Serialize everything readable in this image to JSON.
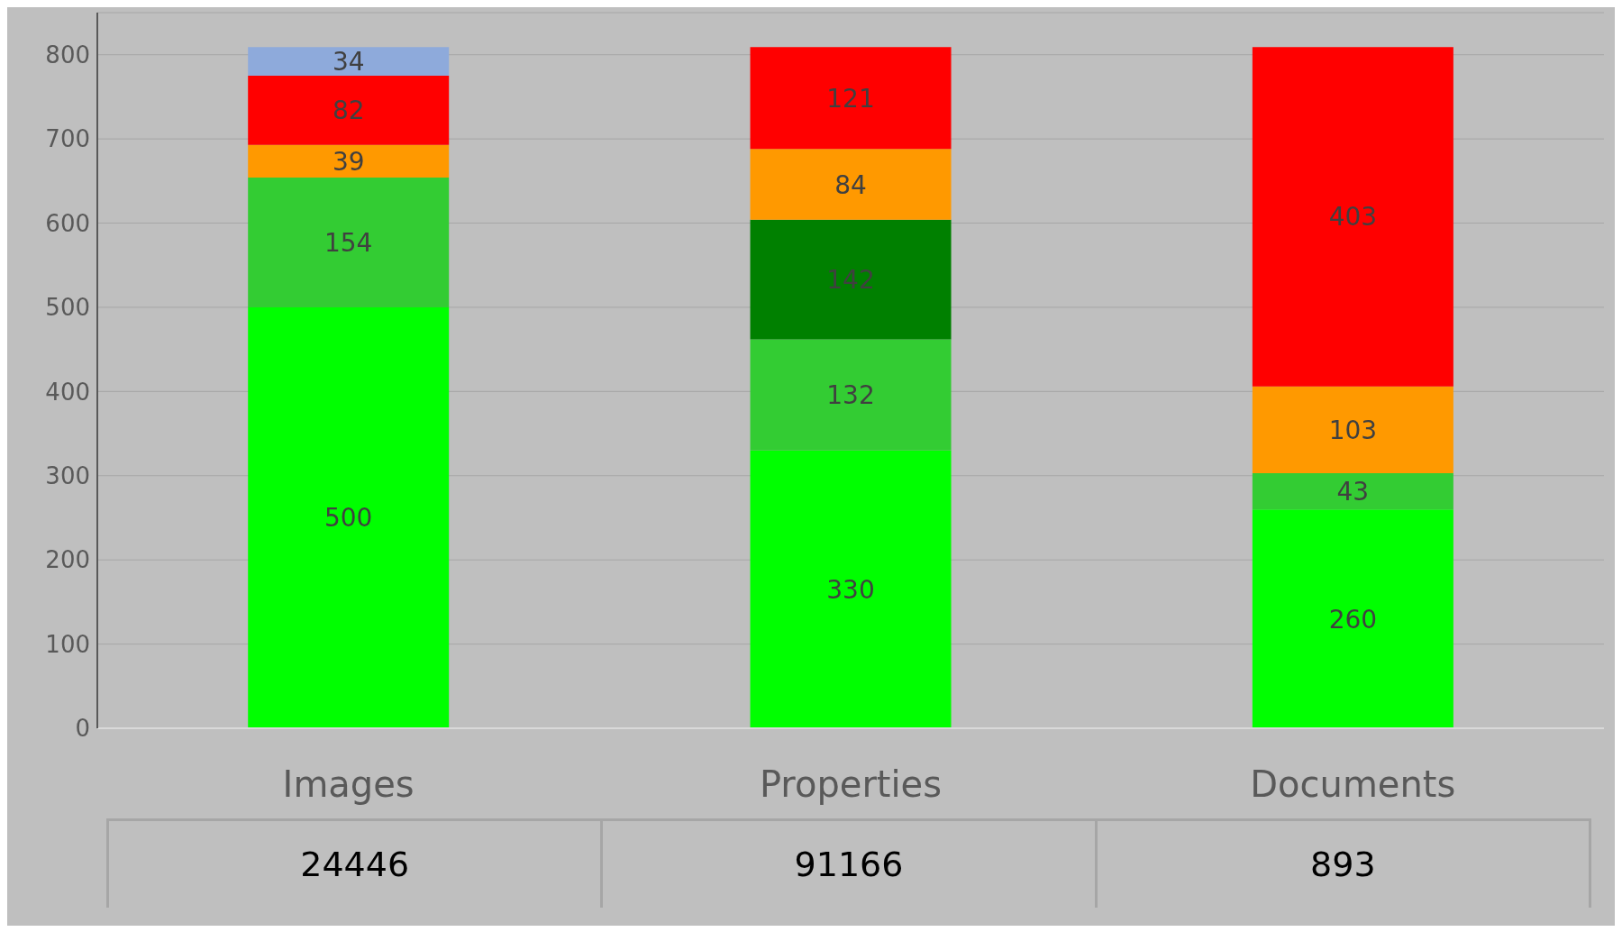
{
  "chart_data": {
    "type": "bar",
    "stacked": true,
    "categories": [
      "Images",
      "Properties",
      "Documents"
    ],
    "series": [
      {
        "color": "#00ff00",
        "values": [
          500,
          330,
          260
        ]
      },
      {
        "color": "#33cc33",
        "values": [
          154,
          132,
          43
        ]
      },
      {
        "color": "#008000",
        "values": [
          null,
          142,
          null
        ]
      },
      {
        "color": "#ff9900",
        "values": [
          39,
          84,
          103
        ]
      },
      {
        "color": "#ff0000",
        "values": [
          82,
          121,
          403
        ]
      },
      {
        "color": "#8eaadb",
        "values": [
          34,
          null,
          null
        ]
      }
    ],
    "ylim": [
      0,
      850
    ],
    "yticks": [
      0,
      100,
      200,
      300,
      400,
      500,
      600,
      700,
      800
    ],
    "grid": "y",
    "data_labels": true,
    "legend": false,
    "annotations": [
      "24446",
      "91166",
      "893"
    ]
  }
}
